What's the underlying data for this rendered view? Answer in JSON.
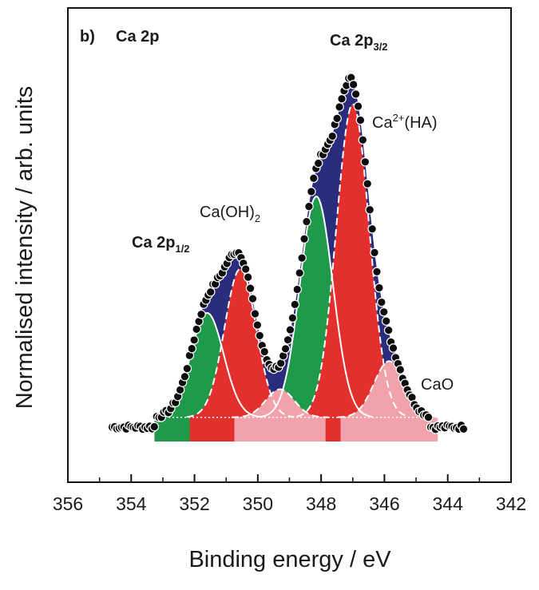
{
  "chart_data": {
    "type": "line",
    "panel_label": "b)",
    "title": "Ca 2p",
    "xlabel": "Binding energy / eV",
    "ylabel": "Normalised intensity / arb. units",
    "x_reversed": true,
    "xlim": [
      356,
      342
    ],
    "ylim": [
      0,
      1
    ],
    "x_ticks": [
      "356",
      "354",
      "352",
      "350",
      "348",
      "346",
      "344",
      "342"
    ],
    "y_ticks_labeled": false,
    "grid": false,
    "legend": "none",
    "background": 0.06,
    "components": [
      {
        "label_main": "Ca(OH)",
        "label_sub": "2",
        "center": 351.6,
        "height": 0.26,
        "sigma": 0.52,
        "color": "#1f9a4a"
      },
      {
        "label_main": "Ca",
        "label_sub": "2+",
        "label_rest": "(HA)",
        "center": 350.55,
        "height": 0.37,
        "sigma": 0.5,
        "color": "#e3302e"
      },
      {
        "label_main": "",
        "center": 349.3,
        "height": 0.07,
        "sigma": 0.45,
        "color": "#f2a2aa"
      },
      {
        "label_main": "Ca(OH)",
        "label_sub": "2",
        "center": 348.15,
        "height": 0.55,
        "sigma": 0.52,
        "color": "#1f9a4a"
      },
      {
        "label_main": "Ca",
        "label_sub": "2+",
        "label_rest": "(HA)",
        "center": 347.0,
        "height": 0.78,
        "sigma": 0.52,
        "color": "#e3302e"
      },
      {
        "label_main": "CaO",
        "center": 345.85,
        "height": 0.14,
        "sigma": 0.48,
        "color": "#f2a2aa"
      }
    ],
    "envelope_color": "#2a2d7e",
    "annotations": [
      {
        "text": "Ca 2p",
        "sub": "3/2",
        "bold": true
      },
      {
        "text": "Ca",
        "sup": "2+",
        "rest": "(HA)",
        "bold": false
      },
      {
        "text": "Ca(OH)",
        "sub": "2",
        "bold": false
      },
      {
        "text": "Ca 2p",
        "sub": "1/2",
        "bold": true
      },
      {
        "text": "CaO",
        "bold": false
      }
    ]
  }
}
